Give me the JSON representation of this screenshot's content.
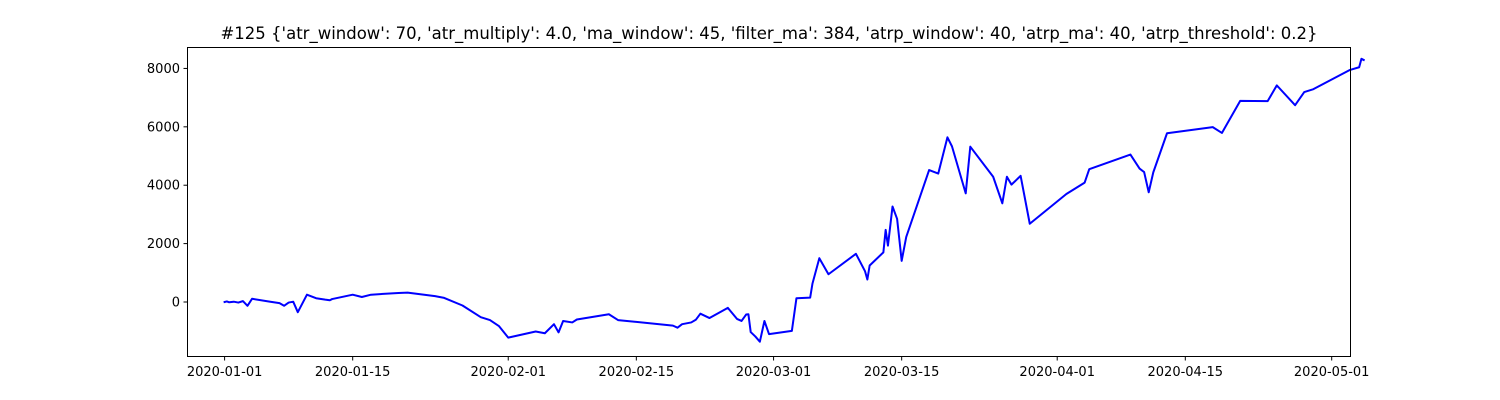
{
  "chart_data": {
    "type": "line",
    "title": "#125 {'atr_window': 70, 'atr_multiply': 4.0, 'ma_window': 45, 'filter_ma': 384, 'atrp_window': 40, 'atrp_ma': 40, 'atrp_threshold': 0.2}",
    "xlabel": "",
    "ylabel": "",
    "x_axis": "date",
    "xlim": [
      "2019-12-28",
      "2020-05-03"
    ],
    "ylim": [
      -1850,
      8700
    ],
    "grid": false,
    "line_color": "#0000ff",
    "x_ticks": [
      "2020-01-01",
      "2020-01-15",
      "2020-02-01",
      "2020-02-15",
      "2020-03-01",
      "2020-03-15",
      "2020-04-01",
      "2020-04-15",
      "2020-05-01"
    ],
    "y_ticks": [
      0,
      2000,
      4000,
      6000,
      8000
    ],
    "series": [
      {
        "points": [
          [
            "2020-01-01",
            0
          ],
          [
            "2020-01-01 06:00",
            20
          ],
          [
            "2020-01-01 12:00",
            -10
          ],
          [
            "2020-01-02",
            10
          ],
          [
            "2020-01-02 12:00",
            -20
          ],
          [
            "2020-01-03",
            30
          ],
          [
            "2020-01-03 12:00",
            -130
          ],
          [
            "2020-01-04",
            110
          ],
          [
            "2020-01-06",
            10
          ],
          [
            "2020-01-07",
            -40
          ],
          [
            "2020-01-07 12:00",
            -130
          ],
          [
            "2020-01-08",
            -20
          ],
          [
            "2020-01-08 12:00",
            10
          ],
          [
            "2020-01-09",
            -350
          ],
          [
            "2020-01-10",
            250
          ],
          [
            "2020-01-11",
            130
          ],
          [
            "2020-01-12",
            80
          ],
          [
            "2020-01-12 12:00",
            60
          ],
          [
            "2020-01-12 18:00",
            100
          ],
          [
            "2020-01-15",
            250
          ],
          [
            "2020-01-16",
            170
          ],
          [
            "2020-01-17",
            250
          ],
          [
            "2020-01-20",
            310
          ],
          [
            "2020-01-21",
            320
          ],
          [
            "2020-01-24",
            200
          ],
          [
            "2020-01-25",
            140
          ],
          [
            "2020-01-27",
            -120
          ],
          [
            "2020-01-29",
            -520
          ],
          [
            "2020-01-30",
            -620
          ],
          [
            "2020-01-31",
            -830
          ],
          [
            "2020-02-01",
            -1220
          ],
          [
            "2020-02-04",
            -1010
          ],
          [
            "2020-02-05",
            -1070
          ],
          [
            "2020-02-06",
            -760
          ],
          [
            "2020-02-06 12:00",
            -1040
          ],
          [
            "2020-02-07",
            -650
          ],
          [
            "2020-02-08",
            -700
          ],
          [
            "2020-02-08 12:00",
            -600
          ],
          [
            "2020-02-12",
            -420
          ],
          [
            "2020-02-13",
            -620
          ],
          [
            "2020-02-19",
            -810
          ],
          [
            "2020-02-19 12:00",
            -880
          ],
          [
            "2020-02-20",
            -760
          ],
          [
            "2020-02-21",
            -700
          ],
          [
            "2020-02-21 12:00",
            -610
          ],
          [
            "2020-02-22",
            -400
          ],
          [
            "2020-02-23",
            -550
          ],
          [
            "2020-02-25",
            -200
          ],
          [
            "2020-02-26",
            -580
          ],
          [
            "2020-02-26 12:00",
            -650
          ],
          [
            "2020-02-27",
            -430
          ],
          [
            "2020-02-27 06:00",
            -420
          ],
          [
            "2020-02-27 12:00",
            -1030
          ],
          [
            "2020-02-28",
            -1180
          ],
          [
            "2020-02-28 12:00",
            -1360
          ],
          [
            "2020-02-29",
            -650
          ],
          [
            "2020-02-29 12:00",
            -1100
          ],
          [
            "2020-03-03",
            -990
          ],
          [
            "2020-03-03 12:00",
            130
          ],
          [
            "2020-03-05",
            150
          ],
          [
            "2020-03-05 06:00",
            630
          ],
          [
            "2020-03-06",
            1500
          ],
          [
            "2020-03-07",
            950
          ],
          [
            "2020-03-10",
            1650
          ],
          [
            "2020-03-11",
            1050
          ],
          [
            "2020-03-11 06:00",
            770
          ],
          [
            "2020-03-11 12:00",
            1250
          ],
          [
            "2020-03-13",
            1700
          ],
          [
            "2020-03-13 06:00",
            2470
          ],
          [
            "2020-03-13 12:00",
            1930
          ],
          [
            "2020-03-14",
            3270
          ],
          [
            "2020-03-14 12:00",
            2850
          ],
          [
            "2020-03-15",
            1410
          ],
          [
            "2020-03-15 12:00",
            2230
          ],
          [
            "2020-03-18",
            4520
          ],
          [
            "2020-03-19",
            4400
          ],
          [
            "2020-03-20",
            5640
          ],
          [
            "2020-03-20 12:00",
            5330
          ],
          [
            "2020-03-22",
            3720
          ],
          [
            "2020-03-22 12:00",
            5320
          ],
          [
            "2020-03-25",
            4290
          ],
          [
            "2020-03-26",
            3380
          ],
          [
            "2020-03-26 12:00",
            4290
          ],
          [
            "2020-03-27",
            4020
          ],
          [
            "2020-03-28",
            4320
          ],
          [
            "2020-03-29",
            2680
          ],
          [
            "2020-04-02",
            3700
          ],
          [
            "2020-04-04",
            4090
          ],
          [
            "2020-04-04 12:00",
            4550
          ],
          [
            "2020-04-09",
            5050
          ],
          [
            "2020-04-10",
            4570
          ],
          [
            "2020-04-10 12:00",
            4450
          ],
          [
            "2020-04-11",
            3760
          ],
          [
            "2020-04-11 12:00",
            4440
          ],
          [
            "2020-04-13",
            5780
          ],
          [
            "2020-04-18",
            5990
          ],
          [
            "2020-04-19",
            5790
          ],
          [
            "2020-04-21",
            6890
          ],
          [
            "2020-04-24",
            6880
          ],
          [
            "2020-04-25",
            7420
          ],
          [
            "2020-04-27",
            6740
          ],
          [
            "2020-04-28",
            7190
          ],
          [
            "2020-04-29",
            7290
          ],
          [
            "2020-05-03",
            7950
          ],
          [
            "2020-05-04",
            8040
          ],
          [
            "2020-05-04 06:00",
            8330
          ],
          [
            "2020-05-04 12:00",
            8290
          ]
        ]
      }
    ]
  }
}
